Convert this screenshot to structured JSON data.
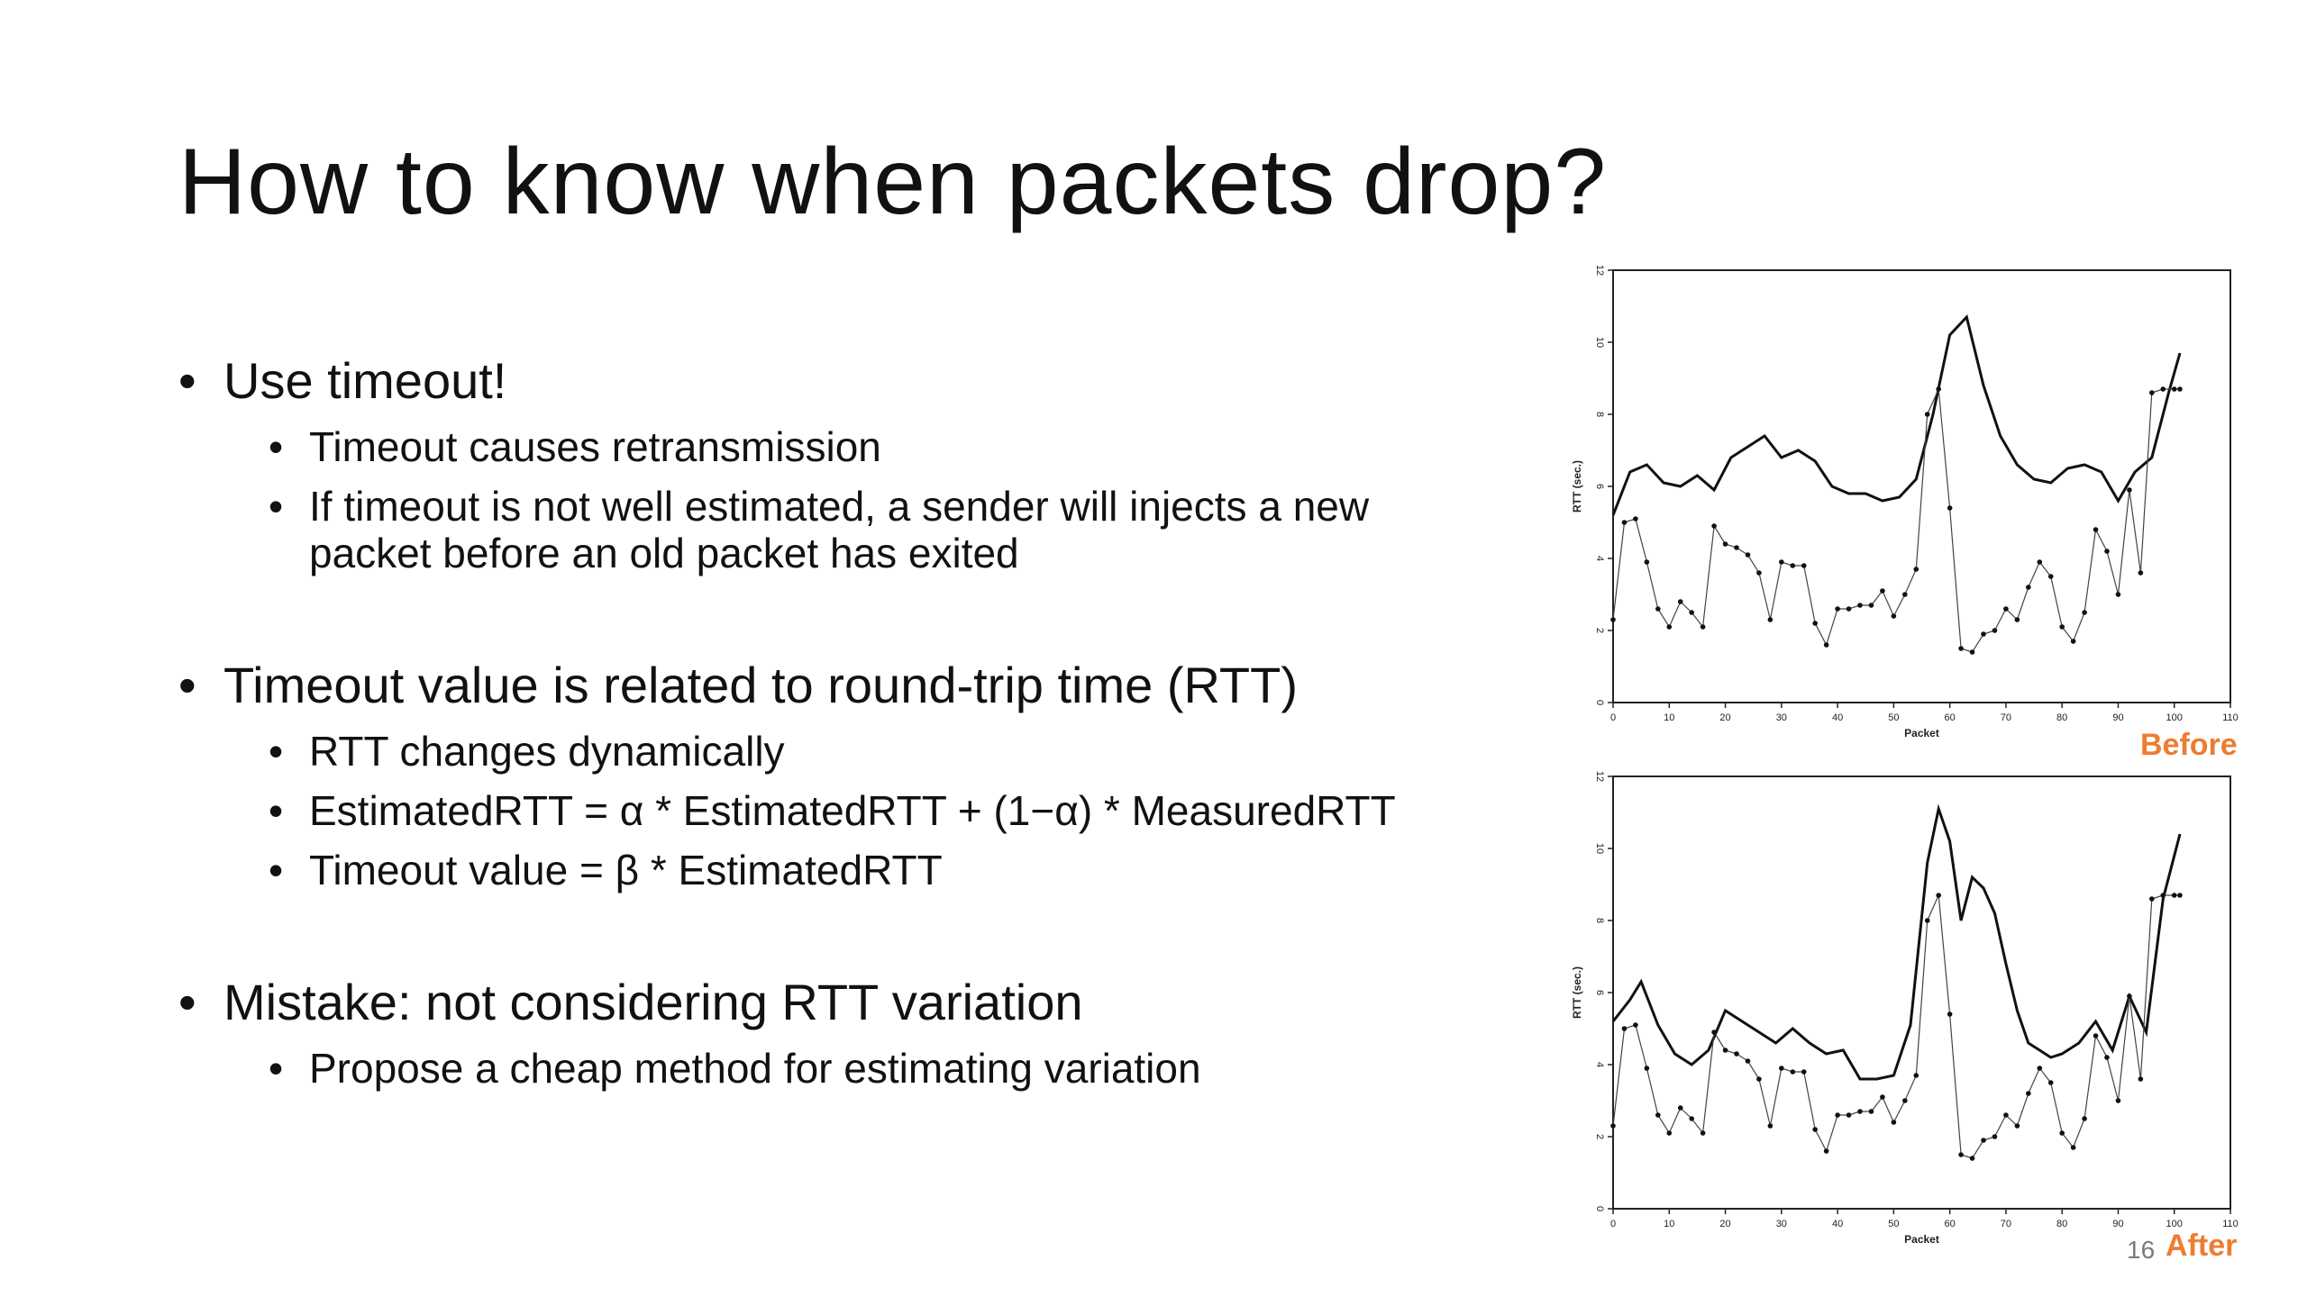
{
  "slide": {
    "title": "How to know when packets drop?",
    "page_number": "16",
    "bullets": [
      {
        "text": "Use timeout!",
        "sub": [
          "Timeout causes retransmission",
          "If timeout is not well estimated, a sender will injects a new packet before an old packet has exited"
        ]
      },
      {
        "text": "Timeout value is related to round-trip time (RTT)",
        "sub": [
          "RTT changes dynamically",
          "EstimatedRTT = α * EstimatedRTT + (1−α) * MeasuredRTT",
          "Timeout value = β * EstimatedRTT"
        ]
      },
      {
        "text": "Mistake: not considering RTT variation",
        "sub": [
          "Propose a cheap method for estimating variation"
        ]
      }
    ]
  },
  "colors": {
    "accent": "#ed7d31",
    "ink": "#111111",
    "page_number": "#7a7a7a"
  },
  "chart_data": [
    {
      "type": "line",
      "label": "Before",
      "xlabel": "Packet",
      "ylabel": "RTT (sec.)",
      "xlim": [
        0,
        110
      ],
      "ylim": [
        0,
        12
      ],
      "x_ticks": [
        "0",
        "10",
        "20",
        "30",
        "40",
        "50",
        "60",
        "70",
        "80",
        "90",
        "100",
        "110"
      ],
      "y_ticks": [
        "0",
        "2",
        "4",
        "6",
        "8",
        "10",
        "12"
      ],
      "series": [
        {
          "style": "solid",
          "x": [
            0,
            3,
            6,
            9,
            12,
            15,
            18,
            21,
            24,
            27,
            30,
            33,
            36,
            39,
            42,
            45,
            48,
            51,
            54,
            57,
            60,
            63,
            66,
            69,
            72,
            75,
            78,
            81,
            84,
            87,
            90,
            93,
            96,
            99,
            101
          ],
          "y": [
            5.2,
            6.4,
            6.6,
            6.1,
            6.0,
            6.3,
            5.9,
            6.8,
            7.1,
            7.4,
            6.8,
            7.0,
            6.7,
            6.0,
            5.8,
            5.8,
            5.6,
            5.7,
            6.2,
            8.0,
            10.2,
            10.7,
            8.8,
            7.4,
            6.6,
            6.2,
            6.1,
            6.5,
            6.6,
            6.4,
            5.6,
            6.4,
            6.8,
            8.6,
            9.7
          ]
        },
        {
          "style": "dotted-markers",
          "x": [
            0,
            2,
            4,
            6,
            8,
            10,
            12,
            14,
            16,
            18,
            20,
            22,
            24,
            26,
            28,
            30,
            32,
            34,
            36,
            38,
            40,
            42,
            44,
            46,
            48,
            50,
            52,
            54,
            56,
            58,
            60,
            62,
            64,
            66,
            68,
            70,
            72,
            74,
            76,
            78,
            80,
            82,
            84,
            86,
            88,
            90,
            92,
            94,
            96,
            98,
            100,
            101
          ],
          "y": [
            2.3,
            5.0,
            5.1,
            3.9,
            2.6,
            2.1,
            2.8,
            2.5,
            2.1,
            4.9,
            4.4,
            4.3,
            4.1,
            3.6,
            2.3,
            3.9,
            3.8,
            3.8,
            2.2,
            1.6,
            2.6,
            2.6,
            2.7,
            2.7,
            3.1,
            2.4,
            3.0,
            3.7,
            8.0,
            8.7,
            5.4,
            1.5,
            1.4,
            1.9,
            2.0,
            2.6,
            2.3,
            3.2,
            3.9,
            3.5,
            2.1,
            1.7,
            2.5,
            4.8,
            4.2,
            3.0,
            5.9,
            3.6,
            8.6,
            8.7,
            8.7,
            8.7
          ]
        }
      ]
    },
    {
      "type": "line",
      "label": "After",
      "xlabel": "Packet",
      "ylabel": "RTT (sec.)",
      "xlim": [
        0,
        110
      ],
      "ylim": [
        0,
        12
      ],
      "x_ticks": [
        "0",
        "10",
        "20",
        "30",
        "40",
        "50",
        "60",
        "70",
        "80",
        "90",
        "100",
        "110"
      ],
      "y_ticks": [
        "0",
        "2",
        "4",
        "6",
        "8",
        "10",
        "12"
      ],
      "series": [
        {
          "style": "solid",
          "x": [
            0,
            3,
            5,
            8,
            11,
            14,
            17,
            20,
            23,
            26,
            29,
            32,
            35,
            38,
            41,
            44,
            47,
            50,
            53,
            56,
            58,
            60,
            62,
            64,
            66,
            68,
            70,
            72,
            74,
            76,
            78,
            80,
            83,
            86,
            89,
            92,
            95,
            98,
            101
          ],
          "y": [
            5.2,
            5.8,
            6.3,
            5.1,
            4.3,
            4.0,
            4.4,
            5.5,
            5.2,
            4.9,
            4.6,
            5.0,
            4.6,
            4.3,
            4.4,
            3.6,
            3.6,
            3.7,
            5.1,
            9.6,
            11.1,
            10.2,
            8.0,
            9.2,
            8.9,
            8.2,
            6.8,
            5.5,
            4.6,
            4.4,
            4.2,
            4.3,
            4.6,
            5.2,
            4.4,
            5.9,
            4.9,
            8.6,
            10.4
          ]
        },
        {
          "style": "dotted-markers",
          "x": [
            0,
            2,
            4,
            6,
            8,
            10,
            12,
            14,
            16,
            18,
            20,
            22,
            24,
            26,
            28,
            30,
            32,
            34,
            36,
            38,
            40,
            42,
            44,
            46,
            48,
            50,
            52,
            54,
            56,
            58,
            60,
            62,
            64,
            66,
            68,
            70,
            72,
            74,
            76,
            78,
            80,
            82,
            84,
            86,
            88,
            90,
            92,
            94,
            96,
            98,
            100,
            101
          ],
          "y": [
            2.3,
            5.0,
            5.1,
            3.9,
            2.6,
            2.1,
            2.8,
            2.5,
            2.1,
            4.9,
            4.4,
            4.3,
            4.1,
            3.6,
            2.3,
            3.9,
            3.8,
            3.8,
            2.2,
            1.6,
            2.6,
            2.6,
            2.7,
            2.7,
            3.1,
            2.4,
            3.0,
            3.7,
            8.0,
            8.7,
            5.4,
            1.5,
            1.4,
            1.9,
            2.0,
            2.6,
            2.3,
            3.2,
            3.9,
            3.5,
            2.1,
            1.7,
            2.5,
            4.8,
            4.2,
            3.0,
            5.9,
            3.6,
            8.6,
            8.7,
            8.7,
            8.7
          ]
        }
      ]
    }
  ]
}
